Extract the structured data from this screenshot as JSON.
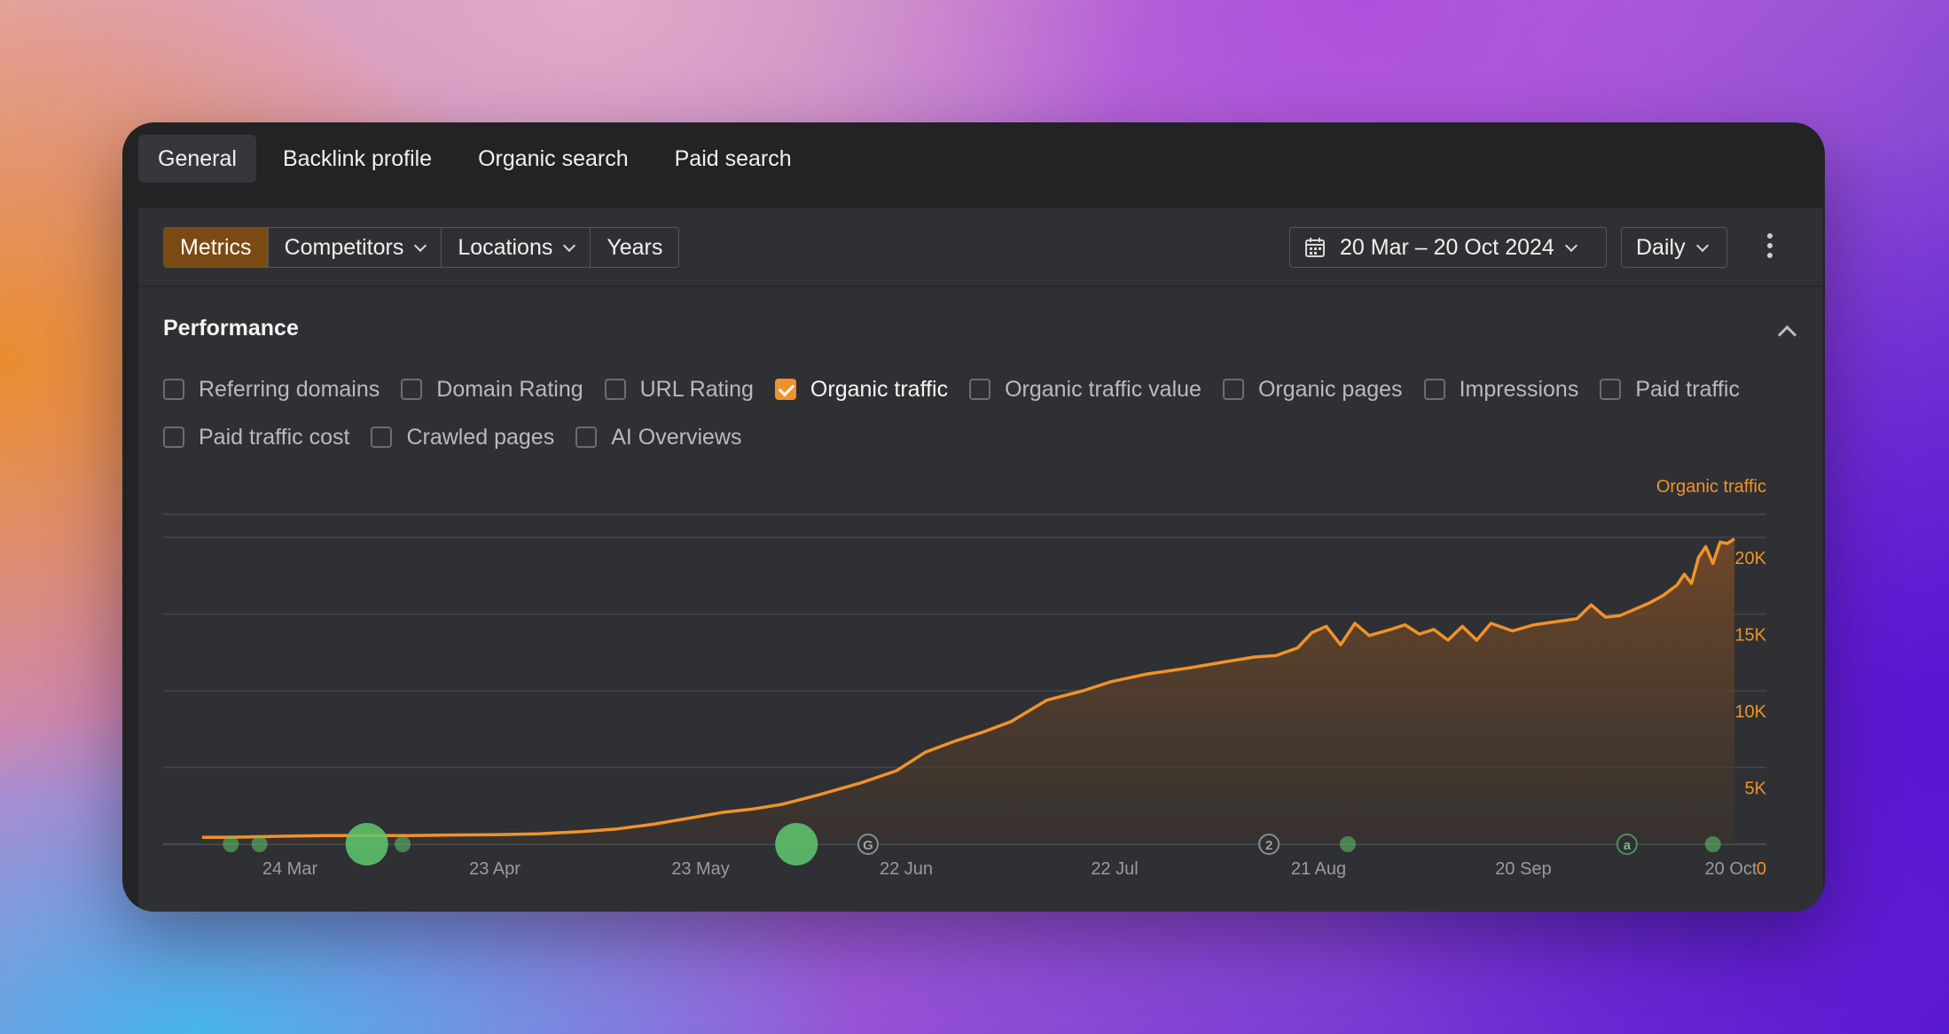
{
  "tabs": [
    {
      "label": "General",
      "active": true
    },
    {
      "label": "Backlink profile",
      "active": false
    },
    {
      "label": "Organic search",
      "active": false
    },
    {
      "label": "Paid search",
      "active": false
    }
  ],
  "toolbar": {
    "segments": [
      {
        "label": "Metrics",
        "active": true,
        "dropdown": false
      },
      {
        "label": "Competitors",
        "active": false,
        "dropdown": true
      },
      {
        "label": "Locations",
        "active": false,
        "dropdown": true
      },
      {
        "label": "Years",
        "active": false,
        "dropdown": false
      }
    ],
    "date_range": "20 Mar – 20 Oct 2024",
    "granularity": "Daily",
    "icons": {
      "calendar": "calendar-icon",
      "more": "kebab-menu-icon"
    }
  },
  "performance": {
    "title": "Performance",
    "metrics_row1": [
      {
        "label": "Referring domains",
        "checked": false
      },
      {
        "label": "Domain Rating",
        "checked": false
      },
      {
        "label": "URL Rating",
        "checked": false
      },
      {
        "label": "Organic traffic",
        "checked": true
      },
      {
        "label": "Organic traffic value",
        "checked": false
      },
      {
        "label": "Organic pages",
        "checked": false
      },
      {
        "label": "Impressions",
        "checked": false
      },
      {
        "label": "Paid traffic",
        "checked": false
      }
    ],
    "metrics_row2": [
      {
        "label": "Paid traffic cost",
        "checked": false
      },
      {
        "label": "Crawled pages",
        "checked": false
      },
      {
        "label": "AI Overviews",
        "checked": false
      }
    ]
  },
  "colors": {
    "accent": "#f0922a",
    "event_marker": "#5fc96e"
  },
  "chart_data": {
    "type": "area",
    "series_label": "Organic traffic",
    "y_tick_labels": [
      "20K",
      "15K",
      "10K",
      "5K",
      "0"
    ],
    "y_ticks": [
      20000,
      15000,
      10000,
      5000,
      0
    ],
    "ylim": [
      0,
      20000
    ],
    "x_tick_labels": [
      "24 Mar",
      "23 Apr",
      "23 May",
      "22 Jun",
      "22 Jul",
      "21 Aug",
      "20 Sep",
      "20 Oct"
    ],
    "x_start": "2024-03-20",
    "x_end": "2024-10-20",
    "series": [
      {
        "values": [
          [
            "2024-03-20",
            450
          ],
          [
            "2024-03-25",
            460
          ],
          [
            "2024-03-31",
            520
          ],
          [
            "2024-04-06",
            560
          ],
          [
            "2024-04-12",
            570
          ],
          [
            "2024-04-18",
            560
          ],
          [
            "2024-04-24",
            600
          ],
          [
            "2024-04-30",
            620
          ],
          [
            "2024-05-06",
            680
          ],
          [
            "2024-05-12",
            820
          ],
          [
            "2024-05-17",
            1000
          ],
          [
            "2024-05-22",
            1300
          ],
          [
            "2024-05-27",
            1700
          ],
          [
            "2024-06-01",
            2100
          ],
          [
            "2024-06-05",
            2300
          ],
          [
            "2024-06-09",
            2600
          ],
          [
            "2024-06-14",
            3200
          ],
          [
            "2024-06-20",
            4000
          ],
          [
            "2024-06-25",
            4800
          ],
          [
            "2024-06-29",
            6000
          ],
          [
            "2024-07-03",
            6700
          ],
          [
            "2024-07-07",
            7300
          ],
          [
            "2024-07-11",
            8000
          ],
          [
            "2024-07-16",
            9400
          ],
          [
            "2024-07-21",
            10000
          ],
          [
            "2024-07-25",
            10600
          ],
          [
            "2024-07-30",
            11100
          ],
          [
            "2024-08-05",
            11500
          ],
          [
            "2024-08-10",
            11900
          ],
          [
            "2024-08-14",
            12200
          ],
          [
            "2024-08-17",
            12300
          ],
          [
            "2024-08-20",
            12800
          ],
          [
            "2024-08-22",
            13800
          ],
          [
            "2024-08-24",
            14200
          ],
          [
            "2024-08-26",
            13000
          ],
          [
            "2024-08-28",
            14400
          ],
          [
            "2024-08-30",
            13600
          ],
          [
            "2024-09-02",
            14000
          ],
          [
            "2024-09-04",
            14300
          ],
          [
            "2024-09-06",
            13700
          ],
          [
            "2024-09-08",
            14000
          ],
          [
            "2024-09-10",
            13300
          ],
          [
            "2024-09-12",
            14200
          ],
          [
            "2024-09-14",
            13300
          ],
          [
            "2024-09-16",
            14400
          ],
          [
            "2024-09-19",
            13900
          ],
          [
            "2024-09-22",
            14300
          ],
          [
            "2024-09-25",
            14500
          ],
          [
            "2024-09-28",
            14700
          ],
          [
            "2024-09-30",
            15600
          ],
          [
            "2024-10-02",
            14800
          ],
          [
            "2024-10-04",
            14900
          ],
          [
            "2024-10-06",
            15300
          ],
          [
            "2024-10-08",
            15700
          ],
          [
            "2024-10-10",
            16200
          ],
          [
            "2024-10-12",
            16900
          ],
          [
            "2024-10-13",
            17600
          ],
          [
            "2024-10-14",
            17000
          ],
          [
            "2024-10-15",
            18700
          ],
          [
            "2024-10-16",
            19400
          ],
          [
            "2024-10-17",
            18300
          ],
          [
            "2024-10-18",
            19700
          ],
          [
            "2024-10-19",
            19600
          ],
          [
            "2024-10-20",
            19900
          ]
        ]
      }
    ],
    "event_markers": [
      {
        "date": "2024-03-24",
        "kind": "dot"
      },
      {
        "date": "2024-03-28",
        "kind": "dot"
      },
      {
        "date": "2024-04-12",
        "kind": "large-dot"
      },
      {
        "date": "2024-04-17",
        "kind": "dot"
      },
      {
        "date": "2024-06-11",
        "kind": "large-dot"
      },
      {
        "date": "2024-06-21",
        "kind": "google-update",
        "label": "G"
      },
      {
        "date": "2024-08-16",
        "kind": "numbered",
        "label": "2"
      },
      {
        "date": "2024-08-27",
        "kind": "dot"
      },
      {
        "date": "2024-10-05",
        "kind": "letter",
        "label": "a"
      },
      {
        "date": "2024-10-17",
        "kind": "dot"
      }
    ]
  }
}
